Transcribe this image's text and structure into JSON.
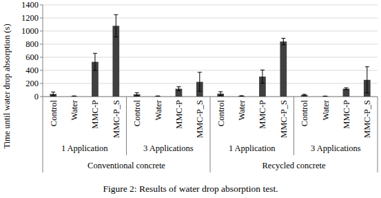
{
  "chart_data": {
    "type": "bar",
    "caption": "Figure 2: Results of water drop absorption test.",
    "y_label": "Time until water drop absorption (s)",
    "categories": [
      "Control",
      "Water",
      "MMC-P",
      "MMC-P_S",
      "Control",
      "Water",
      "MMC-P",
      "MMC-P_S",
      "Control",
      "Water",
      "MMC-P",
      "MMC-P_S",
      "Control",
      "Water",
      "MMC-P",
      "MMC-P_S"
    ],
    "subgroups": [
      "1 Application",
      "3 Applications",
      "1 Application",
      "3 Applications"
    ],
    "groups": [
      "Conventional concrete",
      "Recycled concrete"
    ],
    "series": [
      {
        "name": "Time until water drop absorption",
        "color": "#404040",
        "values": [
          40,
          5,
          530,
          1080,
          35,
          5,
          120,
          225,
          45,
          8,
          305,
          840,
          25,
          5,
          120,
          255
        ],
        "errors": [
          30,
          5,
          130,
          170,
          25,
          5,
          30,
          145,
          30,
          5,
          100,
          50,
          10,
          3,
          15,
          200
        ]
      }
    ],
    "ylim": [
      0,
      1400
    ],
    "yticks": [
      0,
      200,
      400,
      600,
      800,
      1000,
      1200,
      1400
    ],
    "grid": true
  }
}
